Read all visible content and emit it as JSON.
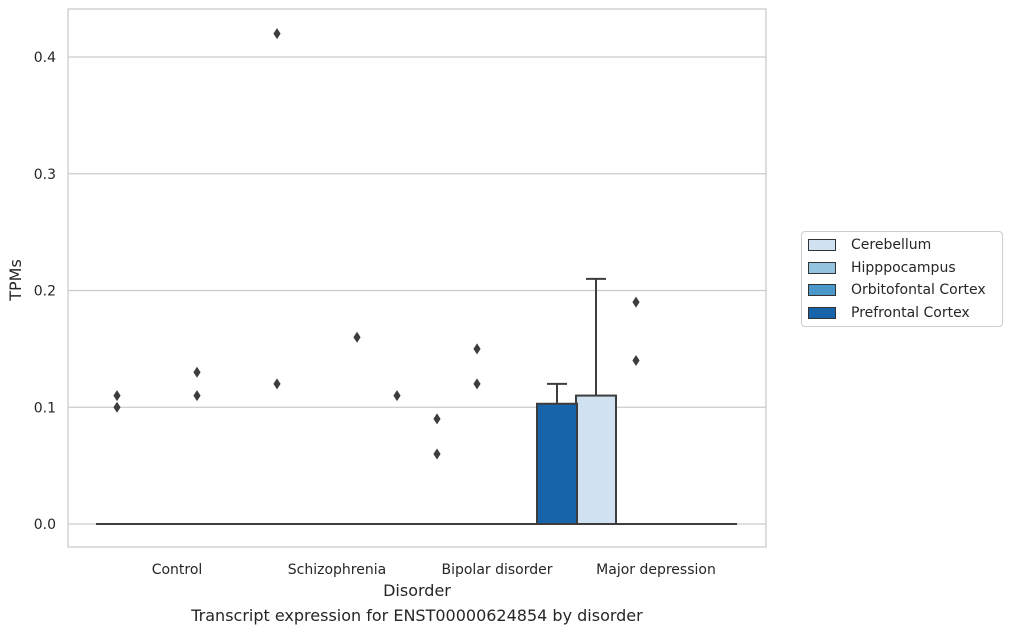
{
  "caption": "Transcript expression for ENST00000624854 by disorder",
  "chart_data": {
    "type": "box",
    "xlabel": "Disorder",
    "ylabel": "TPMs",
    "categories": [
      "Control",
      "Schizophrenia",
      "Bipolar disorder",
      "Major depression"
    ],
    "ylim": [
      -0.02,
      0.44
    ],
    "yticks": [
      0.0,
      0.1,
      0.2,
      0.3,
      0.4
    ],
    "ytick_labels": [
      "0.0",
      "0.1",
      "0.2",
      "0.3",
      "0.4"
    ],
    "grid": "horizontal",
    "legend_position": "right",
    "series": [
      {
        "name": "Cerebellum",
        "color": "#d0e1f2",
        "boxes": [
          {
            "q1": 0,
            "median": 0,
            "q3": 0,
            "whisker_low": 0,
            "whisker_high": 0,
            "outliers": [
              0.1,
              0.11
            ]
          },
          {
            "q1": 0,
            "median": 0,
            "q3": 0,
            "whisker_low": 0,
            "whisker_high": 0,
            "outliers": [
              0.42,
              0.12
            ]
          },
          {
            "q1": 0,
            "median": 0,
            "q3": 0,
            "whisker_low": 0,
            "whisker_high": 0,
            "outliers": [
              0.09,
              0.06
            ]
          },
          {
            "q1": 0,
            "median": 0,
            "q3": 0.11,
            "whisker_low": 0,
            "whisker_high": 0.21,
            "outliers": []
          }
        ]
      },
      {
        "name": "Hipppocampus",
        "color": "#94c4df",
        "boxes": [
          {
            "q1": 0,
            "median": 0,
            "q3": 0,
            "whisker_low": 0,
            "whisker_high": 0,
            "outliers": []
          },
          {
            "q1": 0,
            "median": 0,
            "q3": 0,
            "whisker_low": 0,
            "whisker_high": 0,
            "outliers": []
          },
          {
            "q1": 0,
            "median": 0,
            "q3": 0,
            "whisker_low": 0,
            "whisker_high": 0,
            "outliers": [
              0.15,
              0.12
            ]
          },
          {
            "q1": 0,
            "median": 0,
            "q3": 0,
            "whisker_low": 0,
            "whisker_high": 0,
            "outliers": [
              0.19,
              0.14
            ]
          }
        ]
      },
      {
        "name": "Orbitofontal Cortex",
        "color": "#4a98c9",
        "boxes": [
          {
            "q1": 0,
            "median": 0,
            "q3": 0,
            "whisker_low": 0,
            "whisker_high": 0,
            "outliers": [
              0.13,
              0.11
            ]
          },
          {
            "q1": 0,
            "median": 0,
            "q3": 0,
            "whisker_low": 0,
            "whisker_high": 0,
            "outliers": [
              0.16
            ]
          },
          {
            "q1": 0,
            "median": 0,
            "q3": 0,
            "whisker_low": 0,
            "whisker_high": 0,
            "outliers": []
          },
          {
            "q1": 0,
            "median": 0,
            "q3": 0,
            "whisker_low": 0,
            "whisker_high": 0,
            "outliers": []
          }
        ]
      },
      {
        "name": "Prefrontal Cortex",
        "color": "#1764ab",
        "boxes": [
          {
            "q1": 0,
            "median": 0,
            "q3": 0,
            "whisker_low": 0,
            "whisker_high": 0,
            "outliers": []
          },
          {
            "q1": 0,
            "median": 0,
            "q3": 0,
            "whisker_low": 0,
            "whisker_high": 0,
            "outliers": [
              0.11
            ]
          },
          {
            "q1": 0,
            "median": 0,
            "q3": 0.103,
            "whisker_low": 0,
            "whisker_high": 0.12,
            "outliers": []
          },
          {
            "q1": 0,
            "median": 0,
            "q3": 0,
            "whisker_low": 0,
            "whisker_high": 0,
            "outliers": []
          }
        ]
      }
    ]
  }
}
